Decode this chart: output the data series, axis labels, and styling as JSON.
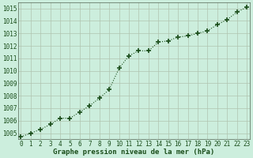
{
  "x": [
    0,
    1,
    2,
    3,
    4,
    5,
    6,
    7,
    8,
    9,
    10,
    11,
    12,
    13,
    14,
    15,
    16,
    17,
    18,
    19,
    20,
    21,
    22,
    23
  ],
  "y": [
    1004.7,
    1005.0,
    1005.3,
    1005.7,
    1006.2,
    1006.2,
    1006.7,
    1007.2,
    1007.8,
    1008.5,
    1010.2,
    1011.2,
    1011.6,
    1011.6,
    1012.3,
    1012.4,
    1012.7,
    1012.8,
    1013.0,
    1013.2,
    1013.7,
    1014.1,
    1014.7,
    1015.1
  ],
  "line_color": "#1a4d1a",
  "marker": "+",
  "marker_size": 5,
  "bg_color": "#cceedd",
  "grid_color": "#b0c4b0",
  "xlabel": "Graphe pression niveau de la mer (hPa)",
  "xlabel_color": "#1a4d1a",
  "tick_color": "#1a4d1a",
  "ylim": [
    1004.5,
    1015.5
  ],
  "xlim": [
    -0.3,
    23.3
  ],
  "yticks": [
    1005,
    1006,
    1007,
    1008,
    1009,
    1010,
    1011,
    1012,
    1013,
    1014,
    1015
  ],
  "xticks": [
    0,
    1,
    2,
    3,
    4,
    5,
    6,
    7,
    8,
    9,
    10,
    11,
    12,
    13,
    14,
    15,
    16,
    17,
    18,
    19,
    20,
    21,
    22,
    23
  ],
  "spine_color": "#556655",
  "tick_fontsize": 5.5,
  "xlabel_fontsize": 6.5
}
